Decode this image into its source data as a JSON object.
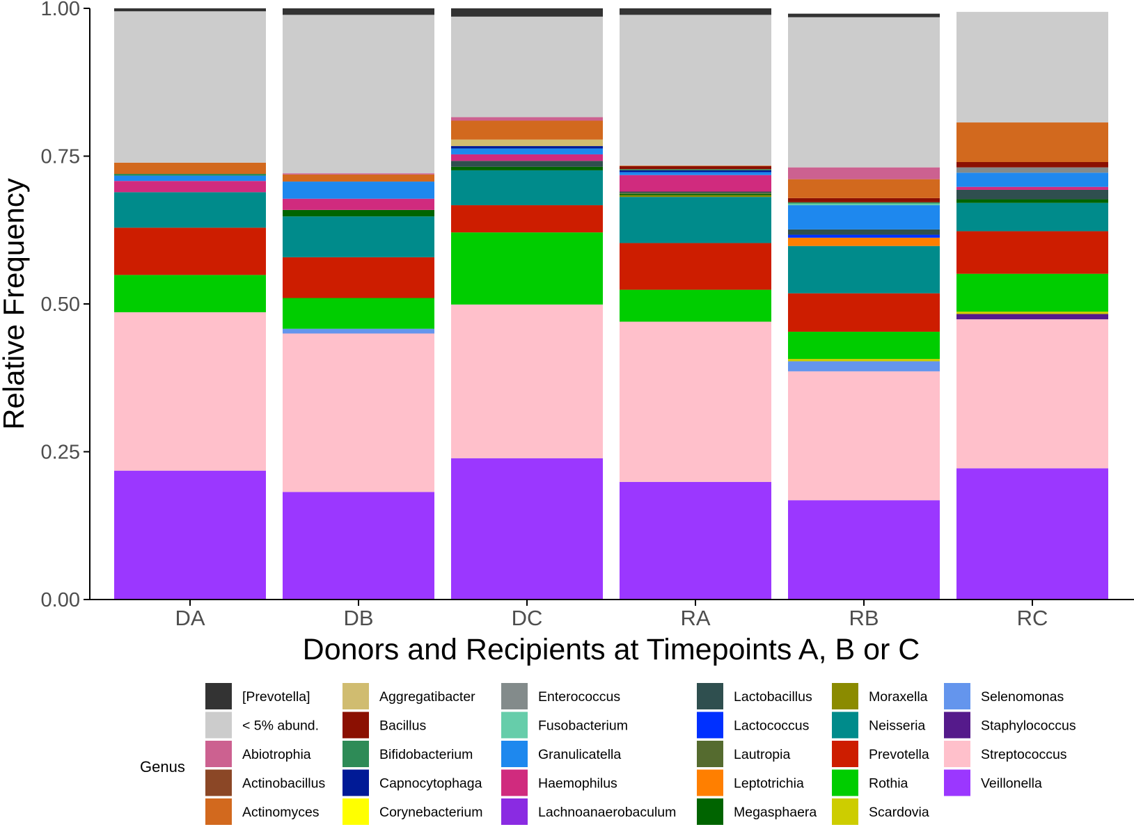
{
  "chart_data": {
    "type": "bar",
    "stacked": true,
    "title": "",
    "xlabel": "Donors and Recipients at Timepoints A, B or C",
    "ylabel": "Relative Frequency",
    "ylim": [
      0,
      1
    ],
    "yticks": [
      "0.00",
      "0.25",
      "0.50",
      "0.75",
      "1.00"
    ],
    "categories": [
      "DA",
      "DB",
      "DC",
      "RA",
      "RB",
      "RC"
    ],
    "legend": {
      "title": "Genus",
      "position": "bottom",
      "entries": [
        {
          "name": "[Prevotella]",
          "color": "#333333"
        },
        {
          "name": "< 5% abund.",
          "color": "#cccccc"
        },
        {
          "name": "Abiotrophia",
          "color": "#cc6190"
        },
        {
          "name": "Actinobacillus",
          "color": "#8b4726"
        },
        {
          "name": "Actinomyces",
          "color": "#d2691e"
        },
        {
          "name": "Aggregatibacter",
          "color": "#d0bc70"
        },
        {
          "name": "Bacillus",
          "color": "#8b1002"
        },
        {
          "name": "Bifidobacterium",
          "color": "#2e8b57"
        },
        {
          "name": "Capnocytophaga",
          "color": "#001a96"
        },
        {
          "name": "Corynebacterium",
          "color": "#ffff00"
        },
        {
          "name": "Enterococcus",
          "color": "#838b8b"
        },
        {
          "name": "Fusobacterium",
          "color": "#66cdaa"
        },
        {
          "name": "Granulicatella",
          "color": "#1e88ee"
        },
        {
          "name": "Haemophilus",
          "color": "#d02b7e"
        },
        {
          "name": "Lachnoanaerobaculum",
          "color": "#8a2be2"
        },
        {
          "name": "Lactobacillus",
          "color": "#2f4f4f"
        },
        {
          "name": "Lactococcus",
          "color": "#0030ff"
        },
        {
          "name": "Lautropia",
          "color": "#556b2f"
        },
        {
          "name": "Leptotrichia",
          "color": "#ff7f00"
        },
        {
          "name": "Megasphaera",
          "color": "#006400"
        },
        {
          "name": "Moraxella",
          "color": "#8b8b00"
        },
        {
          "name": "Neisseria",
          "color": "#008b8b"
        },
        {
          "name": "Prevotella",
          "color": "#cd1d00"
        },
        {
          "name": "Rothia",
          "color": "#00cd00"
        },
        {
          "name": "Scardovia",
          "color": "#cdcd00"
        },
        {
          "name": "Selenomonas",
          "color": "#6495ed"
        },
        {
          "name": "Staphylococcus",
          "color": "#551a8b"
        },
        {
          "name": "Streptococcus",
          "color": "#ffc0cb"
        },
        {
          "name": "Veillonella",
          "color": "#9b37ff"
        }
      ]
    },
    "series": [
      {
        "name": "Veillonella",
        "values": [
          0.218,
          0.182,
          0.239,
          0.199,
          0.168,
          0.222
        ]
      },
      {
        "name": "Streptococcus",
        "values": [
          0.268,
          0.268,
          0.26,
          0.271,
          0.218,
          0.252
        ]
      },
      {
        "name": "Selenomonas",
        "values": [
          0.0,
          0.008,
          0.0,
          0.0,
          0.017,
          0.0
        ]
      },
      {
        "name": "Staphylococcus",
        "values": [
          0.0,
          0.0,
          0.0,
          0.0,
          0.0,
          0.009
        ]
      },
      {
        "name": "Scardovia",
        "values": [
          0.0,
          0.0,
          0.0,
          0.0,
          0.004,
          0.004
        ]
      },
      {
        "name": "Rothia",
        "values": [
          0.063,
          0.052,
          0.122,
          0.054,
          0.046,
          0.064
        ]
      },
      {
        "name": "Prevotella",
        "values": [
          0.08,
          0.069,
          0.046,
          0.079,
          0.065,
          0.072
        ]
      },
      {
        "name": "Neisseria",
        "values": [
          0.06,
          0.069,
          0.059,
          0.078,
          0.08,
          0.048
        ]
      },
      {
        "name": "Moraxella",
        "values": [
          0.0,
          0.0,
          0.0,
          0.003,
          0.0,
          0.0
        ]
      },
      {
        "name": "Leptotrichia",
        "values": [
          0.0,
          0.0,
          0.0,
          0.0,
          0.014,
          0.0
        ]
      },
      {
        "name": "Megasphaera",
        "values": [
          0.0,
          0.011,
          0.006,
          0.002,
          0.0,
          0.006
        ]
      },
      {
        "name": "Lautropia",
        "values": [
          0.0,
          0.0,
          0.0,
          0.002,
          0.0,
          0.0
        ]
      },
      {
        "name": "Lactococcus",
        "values": [
          0.0,
          0.0,
          0.0,
          0.0,
          0.005,
          0.0
        ]
      },
      {
        "name": "Lactobacillus",
        "values": [
          0.0,
          0.0,
          0.01,
          0.002,
          0.009,
          0.016
        ]
      },
      {
        "name": "Haemophilus",
        "values": [
          0.019,
          0.019,
          0.011,
          0.028,
          0.0,
          0.005
        ]
      },
      {
        "name": "Granulicatella",
        "values": [
          0.009,
          0.029,
          0.01,
          0.005,
          0.041,
          0.024
        ]
      },
      {
        "name": "Fusobacterium",
        "values": [
          0.0,
          0.0,
          0.0,
          0.0,
          0.003,
          0.0
        ]
      },
      {
        "name": "Enterococcus",
        "values": [
          0.0,
          0.0,
          0.0,
          0.0,
          0.0,
          0.009
        ]
      },
      {
        "name": "Capnocytophaga",
        "values": [
          0.0,
          0.0,
          0.004,
          0.003,
          0.0,
          0.0
        ]
      },
      {
        "name": "Bifidobacterium",
        "values": [
          0.003,
          0.0,
          0.0,
          0.002,
          0.002,
          0.0
        ]
      },
      {
        "name": "Bacillus",
        "values": [
          0.0,
          0.0,
          0.0,
          0.005,
          0.007,
          0.009
        ]
      },
      {
        "name": "Aggregatibacter",
        "values": [
          0.0,
          0.0,
          0.011,
          0.0,
          0.0,
          0.0
        ]
      },
      {
        "name": "Actinomyces",
        "values": [
          0.019,
          0.012,
          0.032,
          0.001,
          0.032,
          0.067
        ]
      },
      {
        "name": "Abiotrophia",
        "values": [
          0.0,
          0.002,
          0.006,
          0.0,
          0.02,
          0.0
        ]
      },
      {
        "name": "< 5% abund.",
        "values": [
          0.256,
          0.268,
          0.17,
          0.255,
          0.254,
          0.187
        ]
      },
      {
        "name": "[Prevotella]",
        "values": [
          0.005,
          0.011,
          0.014,
          0.011,
          0.006,
          0.0
        ]
      }
    ]
  }
}
